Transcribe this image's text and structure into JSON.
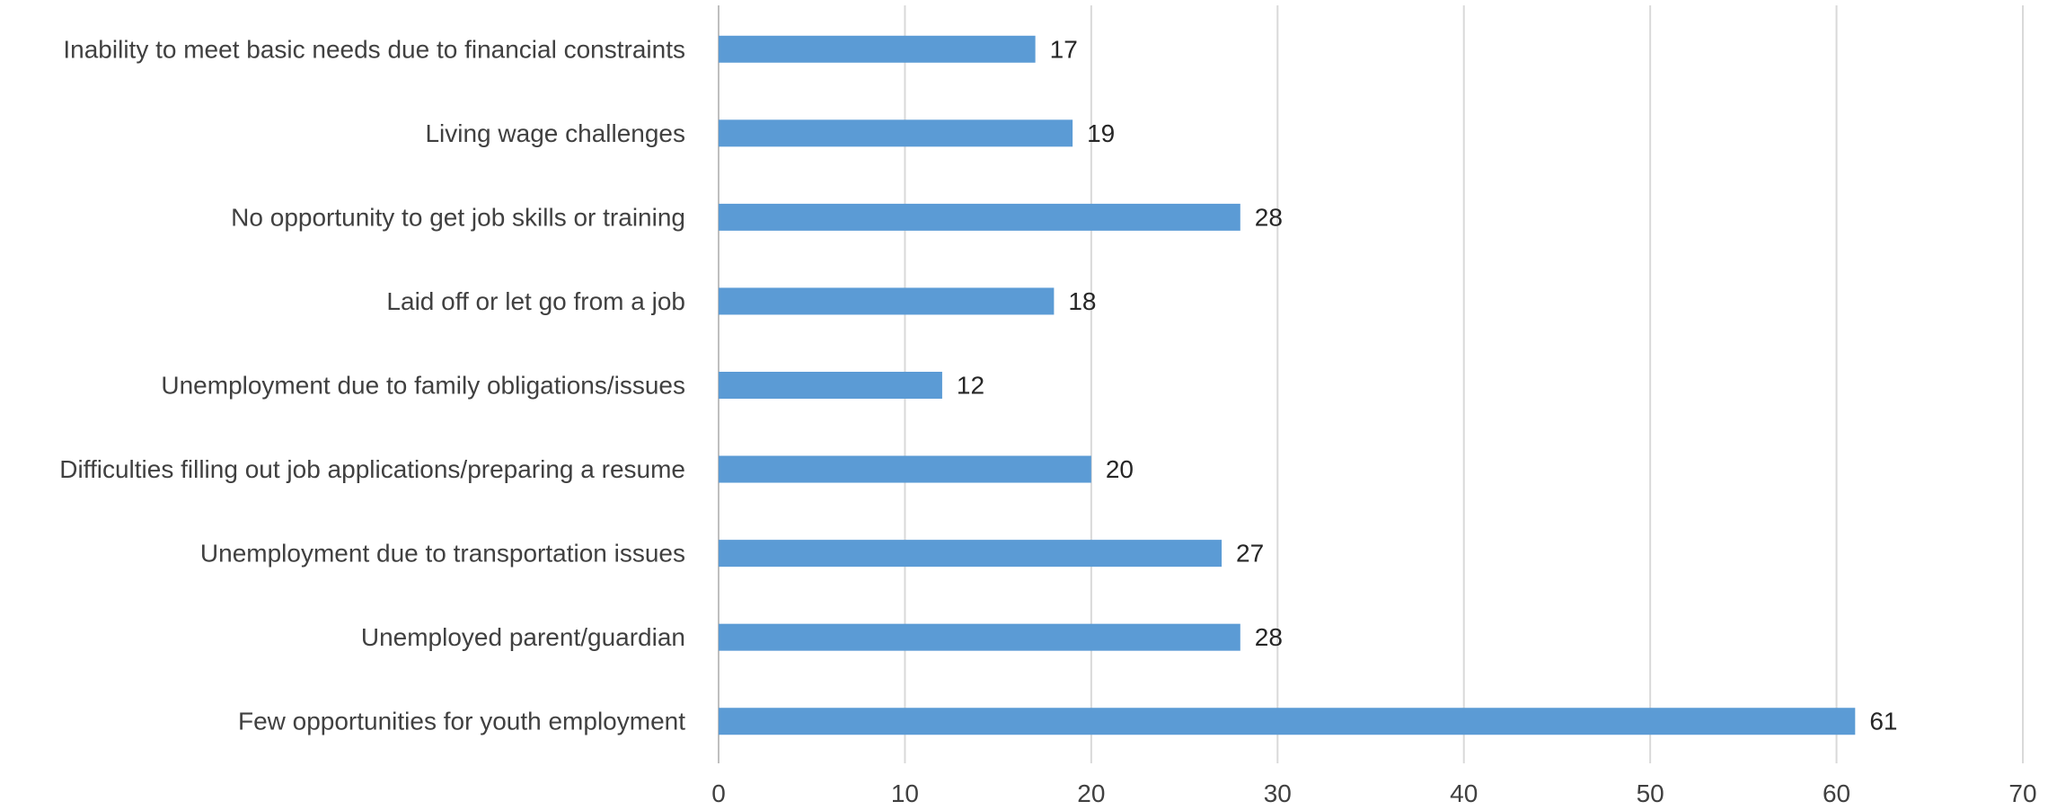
{
  "chart_data": {
    "type": "bar",
    "orientation": "horizontal",
    "categories": [
      "Inability to meet basic needs due to financial constraints",
      "Living wage challenges",
      "No opportunity to get job skills or training",
      "Laid off or let go from a job",
      "Unemployment due to family obligations/issues",
      "Difficulties filling out job applications/preparing a resume",
      "Unemployment due to transportation issues",
      "Unemployed parent/guardian",
      "Few opportunities for youth employment"
    ],
    "values": [
      17,
      19,
      28,
      18,
      12,
      20,
      27,
      28,
      61
    ],
    "title": "",
    "xlabel": "",
    "ylabel": "",
    "xlim": [
      0,
      70
    ],
    "xticks": [
      0,
      10,
      20,
      30,
      40,
      50,
      60,
      70
    ],
    "grid": "vertical",
    "data_labels": true,
    "legend": "none",
    "colors": {
      "bar": "#5B9BD5",
      "grid": "#D9D9D9",
      "axis": "#BFBFBF",
      "text": "#404040"
    }
  }
}
